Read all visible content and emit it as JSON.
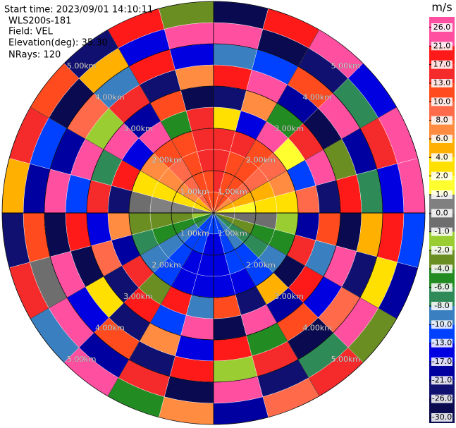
{
  "chart_data": {
    "type": "ppi",
    "info_lines": [
      "Start time: 2023/09/01 14:10:11",
      "WLS200s-181",
      "Field: VEL",
      "Elevation(deg): 35.30",
      "NRays: 120"
    ],
    "azimuths_deg": [
      0,
      15,
      30,
      45,
      60,
      75,
      90,
      105,
      120,
      135,
      150,
      165,
      180,
      195,
      210,
      225,
      240,
      255,
      270,
      285,
      300,
      315,
      330,
      345
    ],
    "gates_km": [
      0,
      0.5,
      1,
      1.5,
      2,
      2.5,
      3,
      3.5,
      4,
      4.5,
      5
    ],
    "values": [
      [
        12.5,
        13.2,
        14.1,
        15.3,
        3.5,
        -22.1,
        18.4,
        -9.7,
        24.3,
        -27.6
      ],
      [
        11.8,
        12.4,
        13.0,
        14.2,
        -16.8,
        7.3,
        25.1,
        -12.4,
        -28.5,
        19.6
      ],
      [
        10.1,
        10.8,
        11.5,
        12.1,
        22.7,
        -4.9,
        -18.3,
        11.2,
        -25.4,
        23.8
      ],
      [
        7.8,
        8.3,
        9.1,
        9.6,
        1.8,
        16.5,
        -27.2,
        21.9,
        -6.3,
        -14.8
      ],
      [
        4.9,
        5.3,
        5.7,
        6.2,
        -11.6,
        24.8,
        -2.4,
        -19.9,
        14.7,
        25.0
      ],
      [
        1.6,
        1.9,
        2.3,
        2.6,
        9.4,
        -23.5,
        18.9,
        -7.1,
        -15.2,
        22.6
      ],
      [
        -0.4,
        -0.6,
        -0.9,
        -1.5,
        -20.3,
        12.8,
        -28.1,
        5.6,
        20.4,
        -11.7
      ],
      [
        -3.1,
        -3.6,
        -4.2,
        -4.7,
        15.9,
        -9.8,
        23.6,
        -24.9,
        3.1,
        -17.5
      ],
      [
        -6.2,
        -6.8,
        -7.4,
        -8.1,
        -26.7,
        19.2,
        -13.6,
        8.7,
        24.1,
        -3.8
      ],
      [
        -8.9,
        -9.7,
        -10.5,
        -11.2,
        4.4,
        -18.6,
        10.9,
        -28.4,
        -7.9,
        16.3
      ],
      [
        -10.8,
        -11.9,
        -12.6,
        -13.4,
        -22.8,
        21.5,
        -5.2,
        14.6,
        -25.7,
        9.1
      ],
      [
        -12.1,
        -13.3,
        -14.2,
        -15.1,
        11.3,
        -27.9,
        17.8,
        -1.6,
        22.9,
        -20.4
      ],
      [
        -12.3,
        -13.5,
        -14.4,
        -15.6,
        -8.4,
        23.3,
        -16.1,
        19.5,
        -29.2,
        6.8
      ],
      [
        -11.5,
        -12.6,
        -13.6,
        -14.5,
        20.6,
        -12.2,
        7.5,
        -23.7,
        15.4,
        -4.5
      ],
      [
        -10.0,
        -10.9,
        -11.7,
        -12.5,
        -2.9,
        17.1,
        -25.6,
        12.3,
        -19.4,
        25.2
      ],
      [
        -7.7,
        -8.5,
        -9.2,
        -9.9,
        13.8,
        -21.2,
        2.7,
        -14.9,
        24.6,
        -8.8
      ],
      [
        -4.8,
        -5.3,
        -5.9,
        -6.4,
        -17.3,
        8.2,
        -28.8,
        21.1,
        -0.7,
        13.5
      ],
      [
        -1.8,
        -2.1,
        -2.5,
        -2.9,
        6.1,
        -15.7,
        19.8,
        -26.3,
        10.2,
        -22.9
      ],
      [
        0.3,
        0.5,
        0.7,
        -0.3,
        -24.5,
        14.1,
        -10.6,
        23.4,
        -17.8,
        4.9
      ],
      [
        2.9,
        3.2,
        3.5,
        3.8,
        18.2,
        -6.7,
        25.4,
        -20.8,
        -12.9,
        16.9
      ],
      [
        5.6,
        6.1,
        6.5,
        7.0,
        -13.9,
        22.4,
        -1.2,
        9.8,
        -27.1,
        11.6
      ],
      [
        8.2,
        8.8,
        9.4,
        10.1,
        23.9,
        -19.1,
        15.2,
        -9.3,
        4.1,
        -24.2
      ],
      [
        10.4,
        11.1,
        11.8,
        12.6,
        -5.8,
        10.6,
        -23.1,
        18.1,
        -16.4,
        20.7
      ],
      [
        11.9,
        12.7,
        13.6,
        14.6,
        16.6,
        -26.2,
        6.4,
        -13.2,
        24.7,
        -2.2
      ]
    ],
    "rings_km": [
      {
        "value": 1,
        "label": "1.00km"
      },
      {
        "value": 2,
        "label": "2.00km"
      },
      {
        "value": 3,
        "label": "3.00km"
      },
      {
        "value": 4,
        "label": "4.00km"
      },
      {
        "value": 5,
        "label": "5.00km"
      }
    ],
    "colorbar": {
      "title": "m/s",
      "ticks": [
        {
          "value": 26,
          "label": "26.0"
        },
        {
          "value": 21,
          "label": "21.0"
        },
        {
          "value": 17,
          "label": "17.0"
        },
        {
          "value": 13,
          "label": "13.0"
        },
        {
          "value": 10,
          "label": "10.0"
        },
        {
          "value": 8,
          "label": "8.0"
        },
        {
          "value": 6,
          "label": "6.0"
        },
        {
          "value": 4,
          "label": "4.0"
        },
        {
          "value": 2,
          "label": "2.0"
        },
        {
          "value": 1,
          "label": "1.0"
        },
        {
          "value": 0,
          "label": "0.0"
        },
        {
          "value": -1,
          "label": "-1.0"
        },
        {
          "value": -2,
          "label": "-2.0"
        },
        {
          "value": -4,
          "label": "-4.0"
        },
        {
          "value": -6,
          "label": "-6.0"
        },
        {
          "value": -8,
          "label": "-8.0"
        },
        {
          "value": -10,
          "label": "-10.0"
        },
        {
          "value": -13,
          "label": "-13.0"
        },
        {
          "value": -17,
          "label": "-17.0"
        },
        {
          "value": -21,
          "label": "-21.0"
        },
        {
          "value": -26,
          "label": "-26.0"
        },
        {
          "value": -30,
          "label": "-30.0"
        }
      ],
      "colors": [
        "#ff4fa0",
        "#ff1a1a",
        "#f52a2a",
        "#ff4b1e",
        "#ff6b4a",
        "#ff8c40",
        "#ffb000",
        "#ffe000",
        "#ffff30",
        "#808080",
        "#6e6e6e",
        "#9acd32",
        "#6b8e23",
        "#228b22",
        "#2e8b57",
        "#3a7fc0",
        "#0040ff",
        "#0000e0",
        "#0000a0",
        "#101070",
        "#0a0a50"
      ]
    }
  }
}
